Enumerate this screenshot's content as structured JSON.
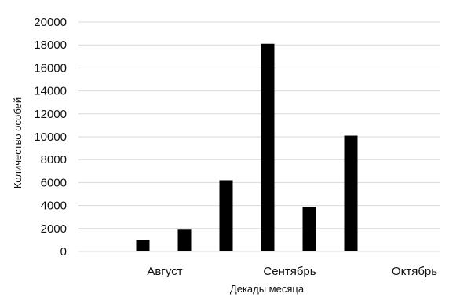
{
  "chart_data": {
    "type": "bar",
    "title": "",
    "xlabel": "Декады месяца",
    "ylabel": "Количество особей",
    "ylim": [
      0,
      20000
    ],
    "yticks": [
      0,
      2000,
      4000,
      6000,
      8000,
      10000,
      12000,
      14000,
      16000,
      18000,
      20000
    ],
    "months": [
      "Август",
      "Сентябрь",
      "Октябрь"
    ],
    "values": [
      1000,
      1900,
      6200,
      18100,
      3900,
      10100,
      0,
      0,
      0
    ],
    "grid": true,
    "legend": "none",
    "bar_color": "#000000",
    "grid_color": "#d9d9d9"
  }
}
